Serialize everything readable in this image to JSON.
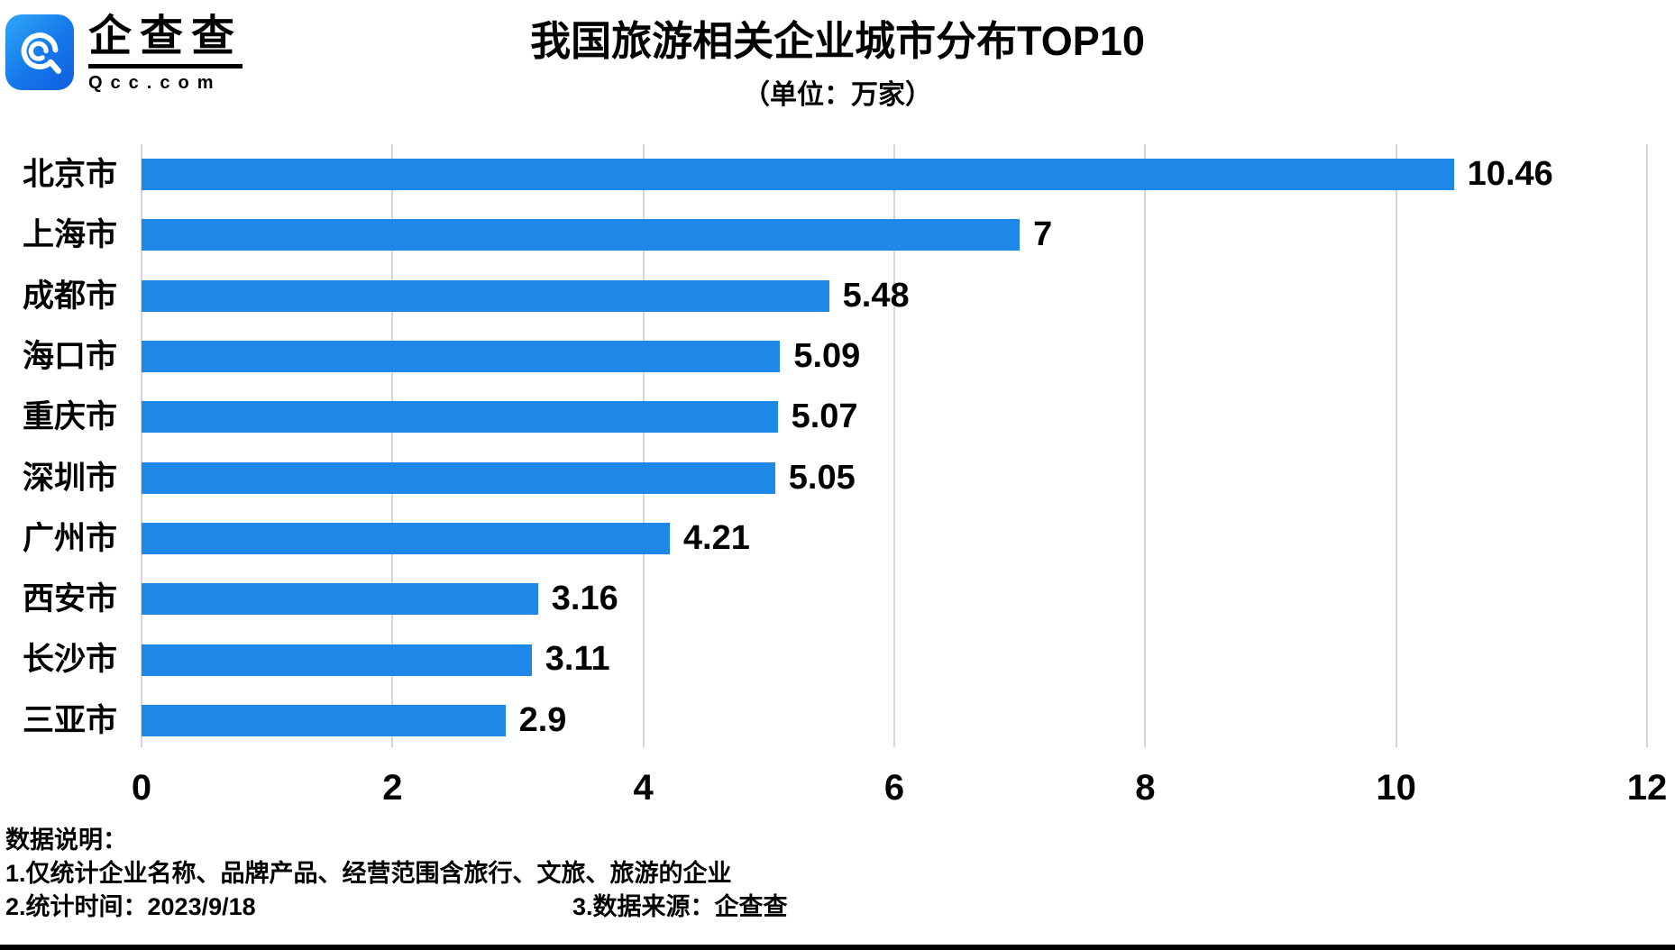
{
  "logo": {
    "brand": "企查查",
    "site": "Qcc.com"
  },
  "header": {
    "title": "我国旅游相关企业城市分布TOP10",
    "subtitle": "（单位：万家）"
  },
  "chart_data": {
    "type": "bar",
    "orientation": "horizontal",
    "title": "我国旅游相关企业城市分布TOP10",
    "unit": "万家",
    "categories": [
      "北京市",
      "上海市",
      "成都市",
      "海口市",
      "重庆市",
      "深圳市",
      "广州市",
      "西安市",
      "长沙市",
      "三亚市"
    ],
    "values": [
      10.46,
      7,
      5.48,
      5.09,
      5.07,
      5.05,
      4.21,
      3.16,
      3.11,
      2.9
    ],
    "value_labels": [
      "10.46",
      "7",
      "5.48",
      "5.09",
      "5.07",
      "5.05",
      "4.21",
      "3.16",
      "3.11",
      "2.9"
    ],
    "xlim": [
      0,
      12
    ],
    "x_ticks": [
      0,
      2,
      4,
      6,
      8,
      10,
      12
    ],
    "grid": true,
    "legend_position": "none",
    "bar_color": "#1E88E8",
    "gridline_color": "#D6D6D6",
    "text_color": "#000000"
  },
  "footer": {
    "heading": "数据说明：",
    "note1": "1.仅统计企业名称、品牌产品、经营范围含旅行、文旅、旅游的企业",
    "note2": "2.统计时间：2023/9/18",
    "note3": "3.数据来源：企查查"
  }
}
